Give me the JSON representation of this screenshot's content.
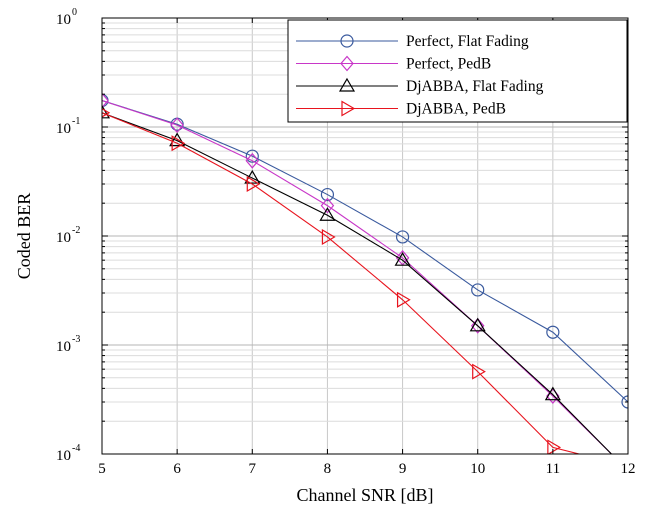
{
  "chart_data": {
    "type": "line",
    "xlabel": "Channel SNR [dB]",
    "ylabel": "Coded BER",
    "xlim": [
      5,
      12
    ],
    "ylim": [
      0.0001,
      1
    ],
    "yscale": "log",
    "grid": true,
    "legend_position": "top-right",
    "x_ticks": [
      "5",
      "6",
      "7",
      "8",
      "9",
      "10",
      "11",
      "12"
    ],
    "y_ticks": [
      {
        "base": "10",
        "exp": "0"
      },
      {
        "base": "10",
        "exp": "-1"
      },
      {
        "base": "10",
        "exp": "-2"
      },
      {
        "base": "10",
        "exp": "-3"
      },
      {
        "base": "10",
        "exp": "-4"
      }
    ],
    "series": [
      {
        "name": "Perfect, Flat Fading",
        "color": "#3a5a9e",
        "marker": "circle",
        "x": [
          5,
          6,
          7,
          8,
          9,
          10,
          11,
          12
        ],
        "y": [
          0.175,
          0.106,
          0.054,
          0.024,
          0.0098,
          0.0032,
          0.00131,
          0.0003
        ]
      },
      {
        "name": "Perfect, PedB",
        "color": "#c837c8",
        "marker": "diamond",
        "x": [
          5,
          6,
          7,
          8,
          9,
          10,
          11,
          11.78
        ],
        "y": [
          0.175,
          0.104,
          0.049,
          0.019,
          0.0063,
          0.0015,
          0.00034,
          0.0001
        ]
      },
      {
        "name": "DjABBA, Flat Fading",
        "color": "#000000",
        "marker": "triangle-up",
        "x": [
          5,
          6,
          7,
          8,
          9,
          10,
          11,
          11.78
        ],
        "y": [
          0.135,
          0.075,
          0.034,
          0.0155,
          0.006,
          0.0015,
          0.00035,
          0.0001
        ]
      },
      {
        "name": "DjABBA, PedB",
        "color": "#e8141e",
        "marker": "triangle-right",
        "x": [
          5,
          6,
          7,
          8,
          9,
          10,
          11,
          11.35
        ],
        "y": [
          0.135,
          0.071,
          0.03,
          0.0098,
          0.0026,
          0.00057,
          0.000115,
          0.0001
        ]
      }
    ]
  }
}
